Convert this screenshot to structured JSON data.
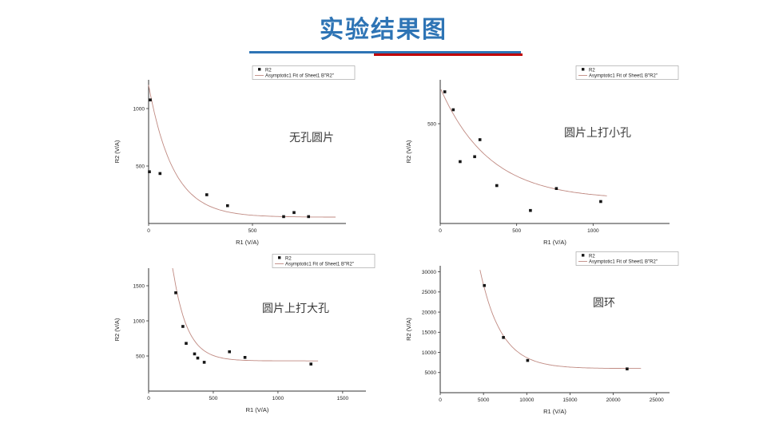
{
  "slide": {
    "title": "实验结果图",
    "title_color": "#2e74b5",
    "accent_blue": "#2e74b5",
    "accent_red": "#c00000",
    "fit_line_color": "#c08a82"
  },
  "chart_data": [
    {
      "type": "scatter",
      "caption": "无孔圆片",
      "legend_marker_label": "R2",
      "legend_fit_label": "Asymptotic1 Fit of Sheet1 B\"R2\"",
      "xlabel": "R1 (V/A)",
      "ylabel": "R2 (V/A)",
      "xlim": [
        0,
        950
      ],
      "ylim": [
        0,
        1250
      ],
      "xticks": [
        0,
        500
      ],
      "yticks": [
        500,
        1000
      ],
      "points": [
        [
          8,
          1075
        ],
        [
          4,
          450
        ],
        [
          55,
          435
        ],
        [
          280,
          250
        ],
        [
          380,
          155
        ],
        [
          650,
          60
        ],
        [
          700,
          95
        ],
        [
          770,
          60
        ]
      ],
      "fit": {
        "asymptote": 55,
        "amplitude": 1150,
        "tau": 118,
        "x0": 0,
        "x1": 900
      }
    },
    {
      "type": "scatter",
      "caption": "圆片上打小孔",
      "legend_marker_label": "R2",
      "legend_fit_label": "Asymptotic1 Fit of Sheet1 B\"R2\"",
      "xlabel": "R1 (V/A)",
      "ylabel": "R2 (V/A)",
      "xlim": [
        0,
        1500
      ],
      "ylim": [
        0,
        720
      ],
      "xticks": [
        0,
        500,
        1000
      ],
      "yticks": [
        500
      ],
      "points": [
        [
          30,
          660
        ],
        [
          85,
          570
        ],
        [
          130,
          310
        ],
        [
          225,
          335
        ],
        [
          260,
          420
        ],
        [
          370,
          190
        ],
        [
          590,
          65
        ],
        [
          760,
          175
        ],
        [
          1050,
          110
        ]
      ],
      "fit": {
        "asymptote": 120,
        "amplitude": 560,
        "tau": 320,
        "x0": 5,
        "x1": 1090
      }
    },
    {
      "type": "scatter",
      "caption": "圆片上打大孔",
      "legend_marker_label": "R2",
      "legend_fit_label": "Asymptotic1 Fit of Sheet1 B\"R2\"",
      "xlabel": "R1 (V/A)",
      "ylabel": "R2 (V/A)",
      "xlim": [
        0,
        1680
      ],
      "ylim": [
        0,
        1750
      ],
      "xticks": [
        0,
        500,
        1000,
        1500
      ],
      "yticks": [
        500,
        1000,
        1500
      ],
      "points": [
        [
          210,
          1400
        ],
        [
          265,
          920
        ],
        [
          290,
          680
        ],
        [
          355,
          530
        ],
        [
          380,
          470
        ],
        [
          430,
          410
        ],
        [
          625,
          560
        ],
        [
          745,
          480
        ],
        [
          1255,
          385
        ]
      ],
      "fit": {
        "asymptote": 430,
        "amplitude": 7200,
        "tau": 110,
        "x0": 185,
        "x1": 1310
      }
    },
    {
      "type": "scatter",
      "caption": "圆环",
      "legend_marker_label": "R2",
      "legend_fit_label": "Asymptotic1 Fit of Sheet1 B\"R2\"",
      "xlabel": "R1 (V/A)",
      "ylabel": "R2 (V/A)",
      "xlim": [
        0,
        26500
      ],
      "ylim": [
        0,
        31500
      ],
      "xticks": [
        0,
        5000,
        10000,
        15000,
        20000,
        25000
      ],
      "yticks": [
        5000,
        10000,
        15000,
        20000,
        25000,
        30000
      ],
      "points": [
        [
          5100,
          26600
        ],
        [
          7300,
          13700
        ],
        [
          10100,
          8000
        ],
        [
          21600,
          5900
        ]
      ],
      "fit": {
        "asymptote": 6000,
        "amplitude": 160000,
        "tau": 2450,
        "x0": 4600,
        "x1": 23200
      }
    }
  ]
}
